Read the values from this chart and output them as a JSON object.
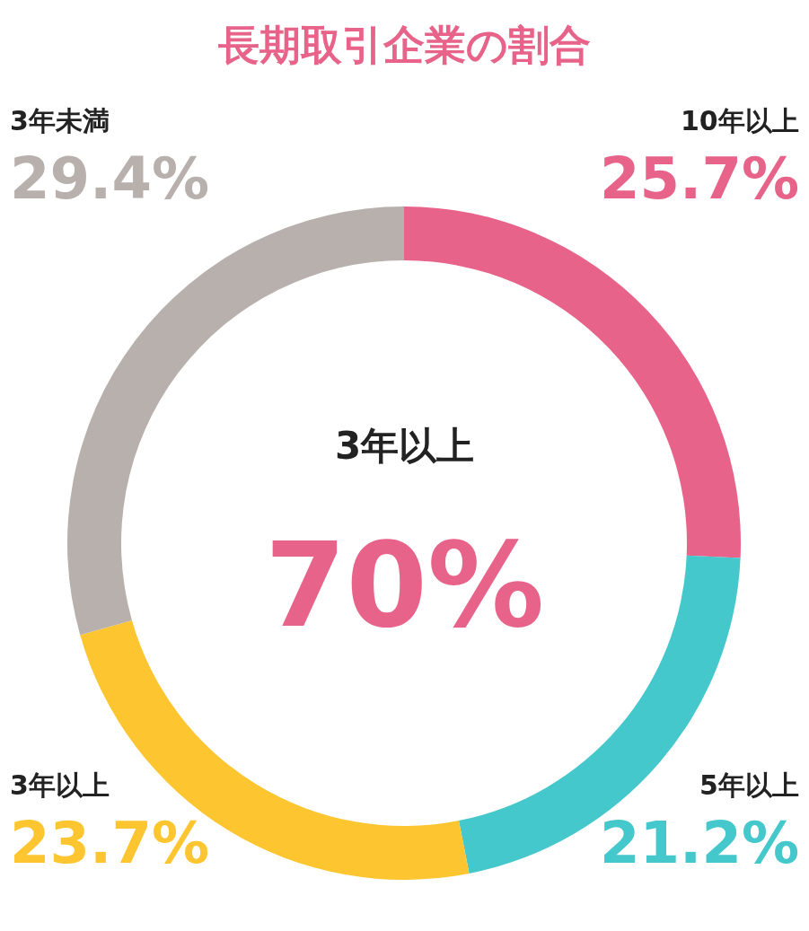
{
  "chart_data": {
    "type": "donut",
    "title": "長期取引企業の割合",
    "categories": [
      "10年以上",
      "5年以上",
      "3年以上",
      "3年未満"
    ],
    "values": [
      25.7,
      21.2,
      23.7,
      29.4
    ],
    "value_labels": [
      "25.7%",
      "21.2%",
      "23.7%",
      "29.4%"
    ],
    "colors": [
      "#e8638a",
      "#45c8cc",
      "#fdc630",
      "#b8b0ad"
    ],
    "annotations": [
      "3年以上",
      "70%"
    ],
    "legend": false
  }
}
